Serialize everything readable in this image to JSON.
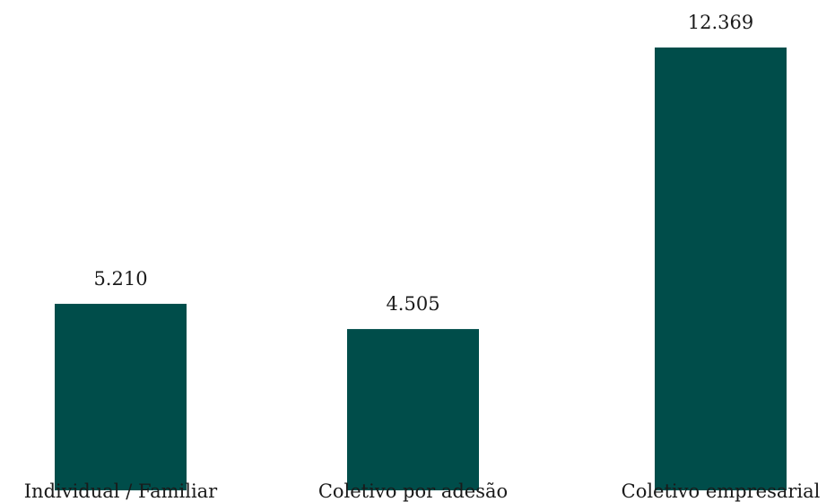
{
  "chart_data": {
    "type": "bar",
    "categories": [
      "Individual / Familiar",
      "Coletivo por adesão",
      "Coletivo empresarial"
    ],
    "values": [
      5210,
      4505,
      12369
    ],
    "value_labels": [
      "5.210",
      "4.505",
      "12.369"
    ],
    "title": "",
    "xlabel": "",
    "ylabel": "",
    "ylim": [
      0,
      12369
    ],
    "grid": false,
    "legend": "none",
    "colors": {
      "bar": "#004d4a",
      "text": "#1a1a1a"
    }
  }
}
